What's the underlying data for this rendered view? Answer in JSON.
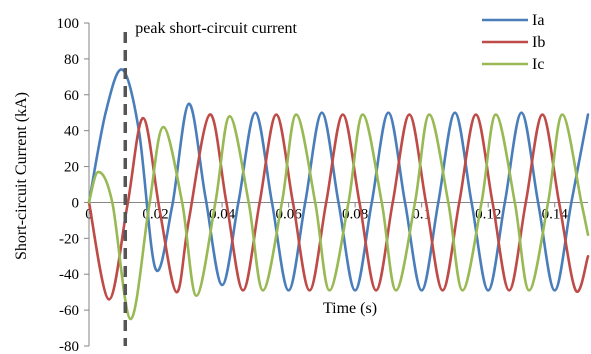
{
  "chart_data": {
    "type": "line",
    "title": "",
    "xlabel": "Time (s)",
    "ylabel": "Short-circuit Current (kA)",
    "xlim": [
      0,
      0.15
    ],
    "ylim": [
      -80,
      100
    ],
    "x_ticks": [
      0,
      0.02,
      0.04,
      0.06,
      0.08,
      0.1,
      0.12,
      0.14
    ],
    "x_tick_labels": [
      "0",
      "0.02",
      "0.04",
      "0.06",
      "0.08",
      "0.1",
      "0.12",
      "0.14"
    ],
    "y_ticks": [
      -80,
      -60,
      -40,
      -20,
      0,
      20,
      40,
      60,
      80,
      100
    ],
    "y_tick_labels": [
      "-80",
      "-60",
      "-40",
      "-20",
      "0",
      "20",
      "40",
      "60",
      "80",
      "100"
    ],
    "grid": false,
    "legend_position": "top-right",
    "series": [
      {
        "name": "Ia",
        "color": "#4a7ebb",
        "points": [
          [
            0,
            0
          ],
          [
            0.005,
            50
          ],
          [
            0.01,
            74
          ],
          [
            0.015,
            40
          ],
          [
            0.02,
            -37
          ],
          [
            0.025,
            -2
          ],
          [
            0.03,
            55
          ],
          [
            0.035,
            3
          ],
          [
            0.04,
            -46
          ],
          [
            0.045,
            1
          ],
          [
            0.05,
            50
          ],
          [
            0.055,
            0
          ],
          [
            0.06,
            -49
          ],
          [
            0.065,
            0
          ],
          [
            0.07,
            50
          ],
          [
            0.075,
            0
          ],
          [
            0.08,
            -49
          ],
          [
            0.085,
            0
          ],
          [
            0.09,
            50
          ],
          [
            0.095,
            0
          ],
          [
            0.1,
            -49
          ],
          [
            0.105,
            0
          ],
          [
            0.11,
            50
          ],
          [
            0.115,
            0
          ],
          [
            0.12,
            -49
          ],
          [
            0.125,
            0
          ],
          [
            0.13,
            50
          ],
          [
            0.135,
            0
          ],
          [
            0.14,
            -49
          ],
          [
            0.145,
            0
          ],
          [
            0.15,
            49
          ]
        ]
      },
      {
        "name": "Ib",
        "color": "#be4b48",
        "points": [
          [
            0,
            0
          ],
          [
            0.006,
            -54
          ],
          [
            0.0115,
            -2
          ],
          [
            0.0163,
            47
          ],
          [
            0.0213,
            -5
          ],
          [
            0.0263,
            -50
          ],
          [
            0.03,
            -10
          ],
          [
            0.0363,
            49
          ],
          [
            0.0413,
            0
          ],
          [
            0.0463,
            -49
          ],
          [
            0.0513,
            0
          ],
          [
            0.0563,
            49
          ],
          [
            0.0613,
            0
          ],
          [
            0.0663,
            -49
          ],
          [
            0.0713,
            0
          ],
          [
            0.0763,
            49
          ],
          [
            0.0813,
            0
          ],
          [
            0.0863,
            -49
          ],
          [
            0.0913,
            0
          ],
          [
            0.0963,
            49
          ],
          [
            0.1013,
            0
          ],
          [
            0.1063,
            -49
          ],
          [
            0.1113,
            0
          ],
          [
            0.1163,
            49
          ],
          [
            0.1213,
            0
          ],
          [
            0.1263,
            -49
          ],
          [
            0.1313,
            0
          ],
          [
            0.1363,
            49
          ],
          [
            0.1413,
            0
          ],
          [
            0.1463,
            -49
          ],
          [
            0.15,
            -30
          ]
        ]
      },
      {
        "name": "Ic",
        "color": "#98b954",
        "points": [
          [
            0,
            0
          ],
          [
            0.0028,
            17
          ],
          [
            0.007,
            0
          ],
          [
            0.0125,
            -65
          ],
          [
            0.018,
            -3
          ],
          [
            0.0223,
            42
          ],
          [
            0.028,
            0
          ],
          [
            0.0323,
            -52
          ],
          [
            0.038,
            0
          ],
          [
            0.0423,
            48
          ],
          [
            0.048,
            0
          ],
          [
            0.0523,
            -49
          ],
          [
            0.058,
            0
          ],
          [
            0.0623,
            49
          ],
          [
            0.068,
            0
          ],
          [
            0.0723,
            -49
          ],
          [
            0.078,
            0
          ],
          [
            0.0823,
            49
          ],
          [
            0.088,
            0
          ],
          [
            0.0923,
            -49
          ],
          [
            0.098,
            0
          ],
          [
            0.1023,
            49
          ],
          [
            0.108,
            0
          ],
          [
            0.1123,
            -49
          ],
          [
            0.118,
            0
          ],
          [
            0.1223,
            49
          ],
          [
            0.128,
            0
          ],
          [
            0.1323,
            -49
          ],
          [
            0.138,
            0
          ],
          [
            0.1423,
            49
          ],
          [
            0.148,
            0
          ],
          [
            0.15,
            -18
          ]
        ]
      }
    ],
    "annotations": [
      {
        "text": "peak short-circuit current",
        "x": 0.01,
        "style": "dashed-vertical-line"
      }
    ]
  }
}
